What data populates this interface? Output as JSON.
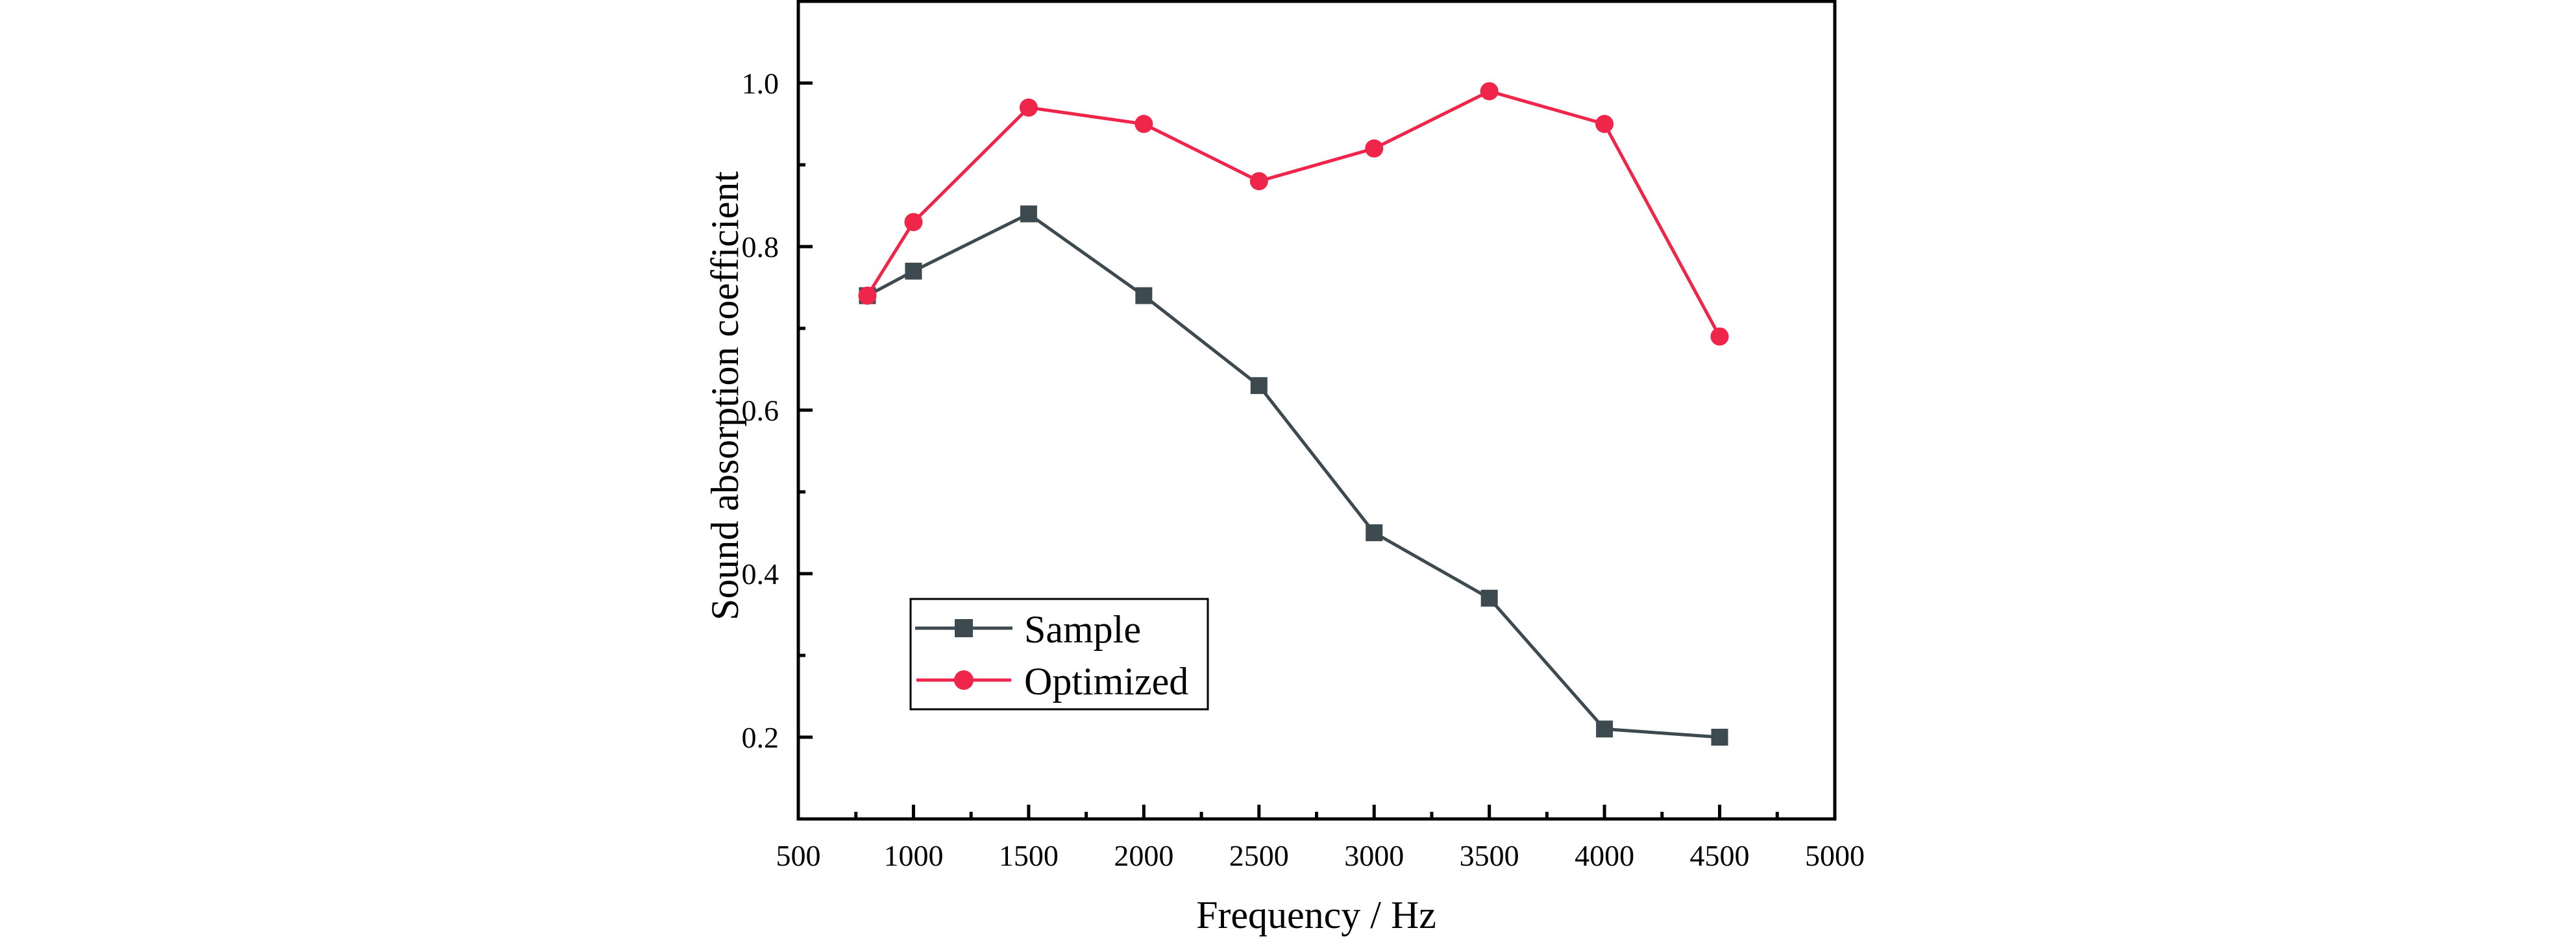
{
  "chart_data": {
    "type": "line",
    "title": "",
    "xlabel": "Frequency / Hz",
    "ylabel": "Sound absorption coefficient",
    "xlim": [
      500,
      5000
    ],
    "ylim": [
      0.1,
      1.1
    ],
    "xticks": [
      500,
      1000,
      1500,
      2000,
      2500,
      3000,
      3500,
      4000,
      4500,
      5000
    ],
    "xtick_labels": [
      "500",
      "1000",
      "1500",
      "2000",
      "2500",
      "3000",
      "3500",
      "4000",
      "4500",
      "5000"
    ],
    "yticks": [
      0.2,
      0.4,
      0.6,
      0.8,
      1.0
    ],
    "ytick_labels": [
      "0.2",
      "0.4",
      "0.6",
      "0.8",
      "1.0"
    ],
    "grid": false,
    "legend_position": "lower-left",
    "x": [
      800,
      1000,
      1500,
      2000,
      2500,
      3000,
      3500,
      4000,
      4500
    ],
    "series": [
      {
        "name": "Sample",
        "marker": "square",
        "color": "#3d4a50",
        "values": [
          0.74,
          0.77,
          0.84,
          0.74,
          0.63,
          0.45,
          0.37,
          0.21,
          0.2
        ]
      },
      {
        "name": "Optimized",
        "marker": "circle",
        "color": "#f0254a",
        "values": [
          0.74,
          0.83,
          0.97,
          0.95,
          0.88,
          0.92,
          0.99,
          0.95,
          0.69
        ]
      }
    ]
  }
}
